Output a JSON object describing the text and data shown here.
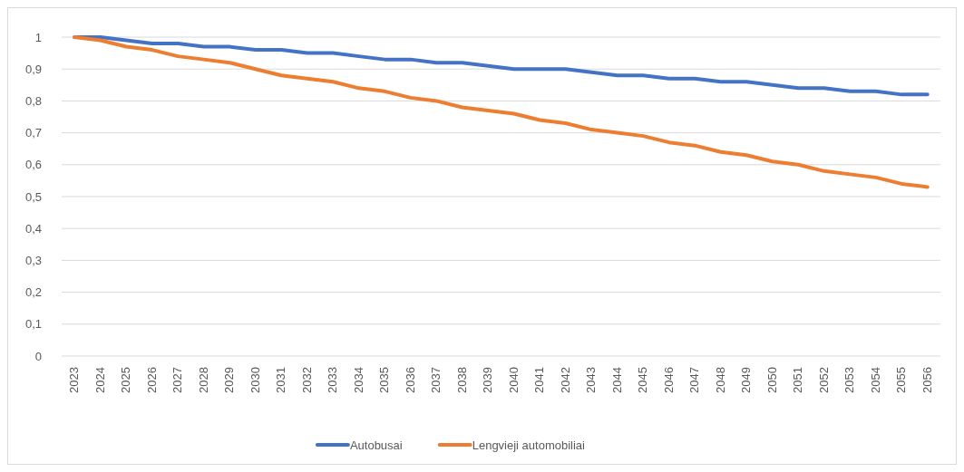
{
  "chart_data": {
    "type": "line",
    "categories": [
      "2023",
      "2024",
      "2025",
      "2026",
      "2027",
      "2028",
      "2029",
      "2030",
      "2031",
      "2032",
      "2033",
      "2034",
      "2035",
      "2036",
      "2037",
      "2038",
      "2039",
      "2040",
      "2041",
      "2042",
      "2043",
      "2044",
      "2045",
      "2046",
      "2047",
      "2048",
      "2049",
      "2050",
      "2051",
      "2052",
      "2053",
      "2054",
      "2055",
      "2056"
    ],
    "series": [
      {
        "name": "Autobusai",
        "color": "#4472c4",
        "values": [
          1,
          1,
          0.99,
          0.98,
          0.98,
          0.97,
          0.97,
          0.96,
          0.96,
          0.95,
          0.95,
          0.94,
          0.93,
          0.93,
          0.92,
          0.92,
          0.91,
          0.9,
          0.9,
          0.9,
          0.89,
          0.88,
          0.88,
          0.87,
          0.87,
          0.86,
          0.86,
          0.85,
          0.84,
          0.84,
          0.83,
          0.83,
          0.82,
          0.82
        ]
      },
      {
        "name": "Lengvieji automobiliai",
        "color": "#ed7d31",
        "values": [
          1,
          0.99,
          0.97,
          0.96,
          0.94,
          0.93,
          0.92,
          0.9,
          0.88,
          0.87,
          0.86,
          0.84,
          0.83,
          0.81,
          0.8,
          0.78,
          0.77,
          0.76,
          0.74,
          0.73,
          0.71,
          0.7,
          0.69,
          0.67,
          0.66,
          0.64,
          0.63,
          0.61,
          0.6,
          0.58,
          0.57,
          0.56,
          0.54,
          0.53
        ]
      }
    ],
    "ylim": [
      0,
      1
    ],
    "yticks": [
      0,
      {
        "value": 0.1,
        "label": "0,1"
      },
      {
        "value": 0.2,
        "label": "0,2"
      },
      {
        "value": 0.3,
        "label": "0,3"
      },
      {
        "value": 0.4,
        "label": "0,4"
      },
      {
        "value": 0.5,
        "label": "0,5"
      },
      {
        "value": 0.6,
        "label": "0,6"
      },
      {
        "value": 0.7,
        "label": "0,7"
      },
      {
        "value": 0.8,
        "label": "0,8"
      },
      {
        "value": 0.9,
        "label": "0,9"
      },
      1
    ],
    "grid": "y",
    "legend": "bottom",
    "marker": "none",
    "line_style": "solid"
  }
}
